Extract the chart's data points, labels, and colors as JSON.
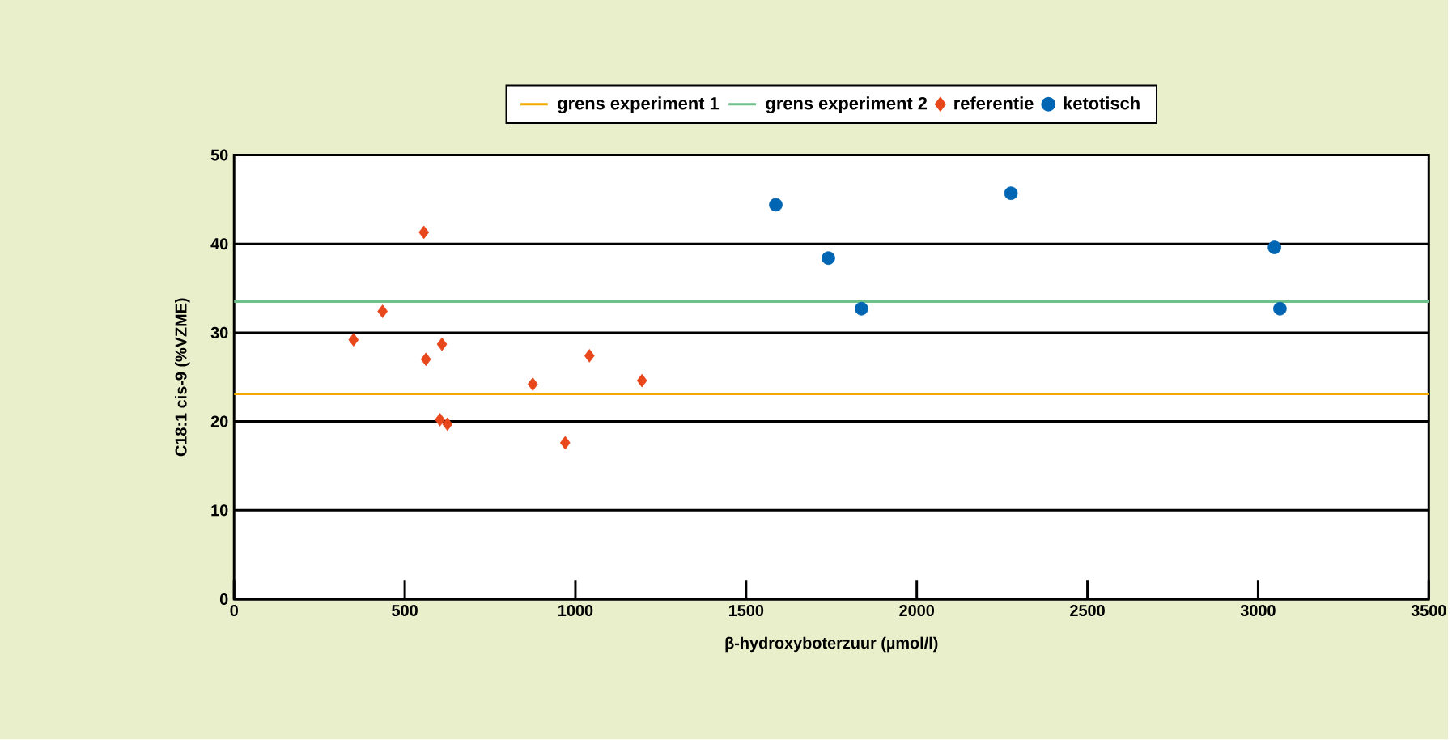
{
  "chart_data": {
    "type": "scatter",
    "xlabel": "β-hydroxyboterzuur (µmol/l)",
    "ylabel": "C18:1 cis-9 (%VZME)",
    "xlim": [
      0,
      3500
    ],
    "xticks": [
      0,
      500,
      1000,
      1500,
      2000,
      2500,
      3000,
      3500
    ],
    "ylim": [
      0,
      50
    ],
    "yticks": [
      0,
      10,
      20,
      30,
      40,
      50
    ],
    "grid": "y",
    "legend": "top",
    "ref_lines": [
      {
        "axis": "y",
        "value": 23.1,
        "label": "grens experiment 1",
        "color": "#f5a800"
      },
      {
        "axis": "y",
        "value": 33.5,
        "label": "grens experiment 2",
        "color": "#6cc28a"
      }
    ],
    "series": [
      {
        "name": "referentie",
        "color": "#e8471c",
        "marker": "diamond",
        "x": [
          350,
          435,
          556,
          562,
          609,
          603,
          625,
          875,
          970,
          1041,
          1195
        ],
        "values": [
          29.2,
          32.4,
          41.3,
          27.0,
          28.7,
          20.2,
          19.7,
          24.2,
          17.6,
          27.4,
          24.6
        ]
      },
      {
        "name": "ketotisch",
        "color": "#0066b3",
        "marker": "circle",
        "x": [
          1587,
          1741,
          1838,
          2276,
          3048,
          3064
        ],
        "values": [
          44.4,
          38.4,
          32.7,
          45.7,
          39.6,
          32.7
        ]
      }
    ]
  }
}
